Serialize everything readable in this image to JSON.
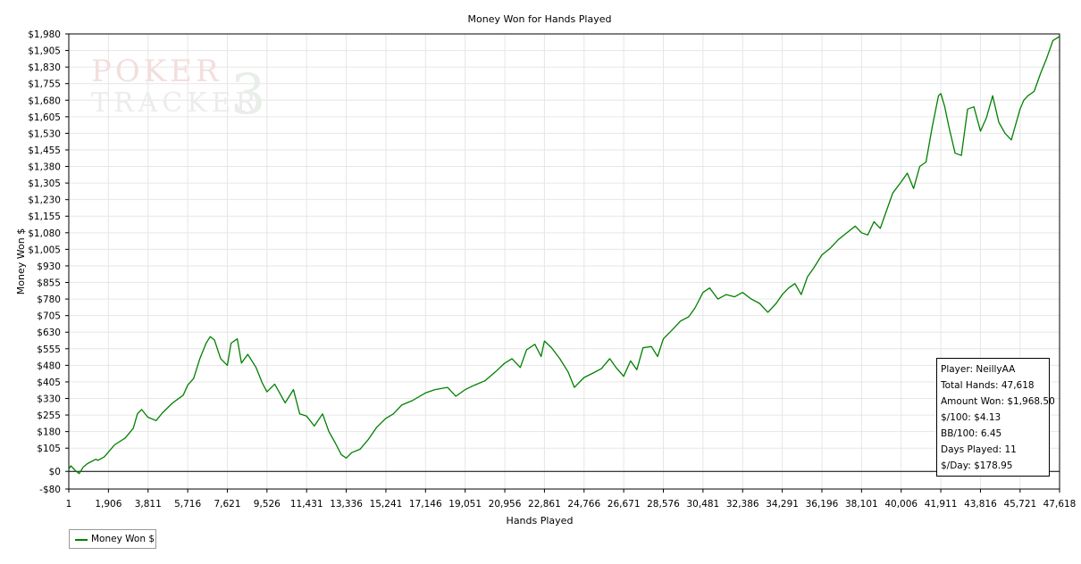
{
  "chart_data": {
    "type": "line",
    "title": "Money Won for Hands Played",
    "xlabel": "Hands Played",
    "ylabel": "Money Won $",
    "xlim": [
      1,
      47618
    ],
    "ylim": [
      -80,
      1980
    ],
    "grid": true,
    "x_ticks": [
      1,
      1906,
      3811,
      5716,
      7621,
      9526,
      11431,
      13336,
      15241,
      17146,
      19051,
      20956,
      22861,
      24766,
      26671,
      28576,
      30481,
      32386,
      34291,
      36196,
      38101,
      40006,
      41911,
      43816,
      45721,
      47618
    ],
    "x_tick_labels": [
      "1",
      "1,906",
      "3,811",
      "5,716",
      "7,621",
      "9,526",
      "11,431",
      "13,336",
      "15,241",
      "17,146",
      "19,051",
      "20,956",
      "22,861",
      "24,766",
      "26,671",
      "28,576",
      "30,481",
      "32,386",
      "34,291",
      "36,196",
      "38,101",
      "40,006",
      "41,911",
      "43,816",
      "45,721",
      "47,618"
    ],
    "y_ticks": [
      -80,
      0,
      105,
      180,
      255,
      330,
      405,
      480,
      555,
      630,
      705,
      780,
      855,
      930,
      1005,
      1080,
      1155,
      1230,
      1305,
      1380,
      1455,
      1530,
      1605,
      1680,
      1755,
      1830,
      1905,
      1980
    ],
    "y_tick_labels": [
      "-$80",
      "$0",
      "$105",
      "$180",
      "$255",
      "$330",
      "$405",
      "$480",
      "$555",
      "$630",
      "$705",
      "$780",
      "$855",
      "$930",
      "$1,005",
      "$1,080",
      "$1,155",
      "$1,230",
      "$1,305",
      "$1,380",
      "$1,455",
      "$1,530",
      "$1,605",
      "$1,680",
      "$1,755",
      "$1,830",
      "$1,905",
      "$1,980"
    ],
    "series": [
      {
        "name": "Money Won $",
        "color": "#008000",
        "x": [
          1,
          100,
          300,
          500,
          700,
          900,
          1300,
          1400,
          1700,
          2200,
          2700,
          3100,
          3300,
          3500,
          3800,
          4200,
          4500,
          5000,
          5500,
          5716,
          6000,
          6300,
          6600,
          6800,
          7000,
          7300,
          7621,
          7800,
          8100,
          8300,
          8600,
          9000,
          9300,
          9526,
          9900,
          10400,
          10800,
          11100,
          11431,
          11800,
          12200,
          12500,
          12800,
          13100,
          13336,
          13600,
          14000,
          14400,
          14800,
          15241,
          15600,
          16000,
          16500,
          17146,
          17600,
          18200,
          18600,
          19051,
          19500,
          20000,
          20500,
          20956,
          21300,
          21700,
          22000,
          22400,
          22700,
          22861,
          23200,
          23600,
          24000,
          24300,
          24766,
          25200,
          25600,
          26000,
          26300,
          26671,
          27000,
          27300,
          27600,
          28000,
          28300,
          28576,
          29000,
          29400,
          29800,
          30100,
          30481,
          30800,
          31200,
          31600,
          32000,
          32386,
          32800,
          33200,
          33600,
          34000,
          34291,
          34600,
          34900,
          35200,
          35500,
          35800,
          36196,
          36600,
          37000,
          37400,
          37800,
          38101,
          38400,
          38700,
          39000,
          39300,
          39600,
          40006,
          40300,
          40600,
          40900,
          41200,
          41500,
          41800,
          41911,
          42100,
          42300,
          42600,
          42900,
          43200,
          43500,
          43816,
          44100,
          44400,
          44700,
          45000,
          45300,
          45600,
          45721,
          45900,
          46100,
          46400,
          46700,
          47000,
          47300,
          47618
        ],
        "values": [
          10,
          25,
          5,
          -10,
          20,
          35,
          55,
          50,
          65,
          120,
          150,
          195,
          260,
          280,
          245,
          230,
          265,
          310,
          345,
          390,
          420,
          510,
          580,
          610,
          595,
          510,
          480,
          580,
          600,
          490,
          530,
          470,
          400,
          360,
          395,
          310,
          370,
          260,
          250,
          205,
          260,
          180,
          130,
          75,
          60,
          85,
          100,
          145,
          200,
          240,
          260,
          300,
          320,
          355,
          370,
          380,
          340,
          370,
          390,
          410,
          450,
          490,
          510,
          470,
          550,
          575,
          520,
          590,
          560,
          510,
          450,
          380,
          425,
          445,
          465,
          510,
          470,
          430,
          500,
          460,
          560,
          565,
          520,
          600,
          640,
          680,
          700,
          740,
          810,
          830,
          780,
          800,
          790,
          810,
          780,
          760,
          720,
          760,
          800,
          830,
          850,
          800,
          880,
          920,
          980,
          1010,
          1050,
          1080,
          1110,
          1080,
          1070,
          1130,
          1100,
          1180,
          1260,
          1310,
          1350,
          1280,
          1380,
          1400,
          1560,
          1700,
          1710,
          1650,
          1560,
          1440,
          1430,
          1640,
          1650,
          1540,
          1600,
          1700,
          1580,
          1530,
          1500,
          1600,
          1640,
          1680,
          1700,
          1720,
          1800,
          1870,
          1950,
          1968.5
        ]
      }
    ]
  },
  "stats": {
    "player": "Player: NeillyAA",
    "total_hands": "Total Hands: 47,618",
    "amount_won": "Amount Won: $1,968.50",
    "per_100": "$/100: $4.13",
    "bb_per_100": "BB/100: 6.45",
    "days_played": "Days Played: 11",
    "per_day": "$/Day: $178.95"
  },
  "legend": {
    "label": "Money Won $",
    "color": "#008000"
  },
  "watermark": {
    "line1": "POKER",
    "digit": "3",
    "line2": "TRACKER"
  }
}
